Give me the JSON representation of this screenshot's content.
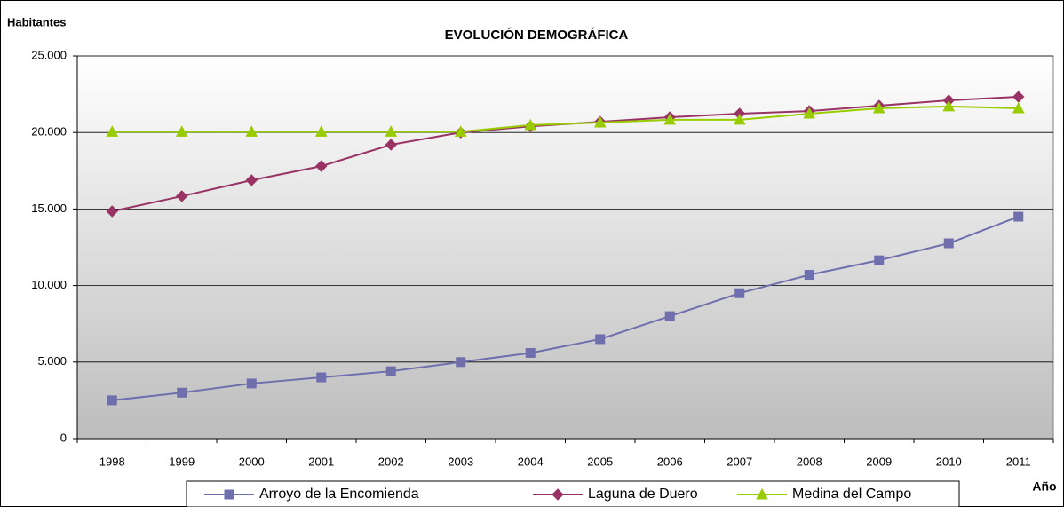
{
  "chart_data": {
    "type": "line",
    "title": "EVOLUCIÓN DEMOGRÁFICA",
    "y_label": "Habitantes",
    "x_label": "Año",
    "categories": [
      "1998",
      "1999",
      "2000",
      "2001",
      "2002",
      "2003",
      "2004",
      "2005",
      "2006",
      "2007",
      "2008",
      "2009",
      "2010",
      "2011"
    ],
    "series": [
      {
        "name": "Arroyo de la Encomienda",
        "color": "#6f6fae",
        "marker": "square",
        "values": [
          2500,
          3000,
          3600,
          4000,
          4400,
          5000,
          5600,
          6500,
          8000,
          9500,
          10700,
          11650,
          12760,
          14500
        ]
      },
      {
        "name": "Laguna de Duero",
        "color": "#993366",
        "marker": "diamond",
        "values": [
          14850,
          15840,
          16880,
          17800,
          19200,
          20000,
          20400,
          20700,
          21000,
          21230,
          21400,
          21750,
          22100,
          22330
        ]
      },
      {
        "name": "Medina del Campo",
        "color": "#99cc00",
        "marker": "triangle",
        "values": [
          20050,
          20050,
          20050,
          20050,
          20050,
          20050,
          20480,
          20650,
          20830,
          20830,
          21230,
          21580,
          21700,
          21580
        ]
      }
    ],
    "ylim": [
      0,
      25000
    ],
    "yticks": [
      0,
      {
        "value": 5000,
        "label": "5.000"
      },
      {
        "value": 10000,
        "label": "10.000"
      },
      {
        "value": 15000,
        "label": "15.000"
      },
      {
        "value": 20000,
        "label": "20.000"
      },
      {
        "value": 25000,
        "label": "25.000"
      }
    ],
    "grid": true,
    "legend": "bottom"
  }
}
